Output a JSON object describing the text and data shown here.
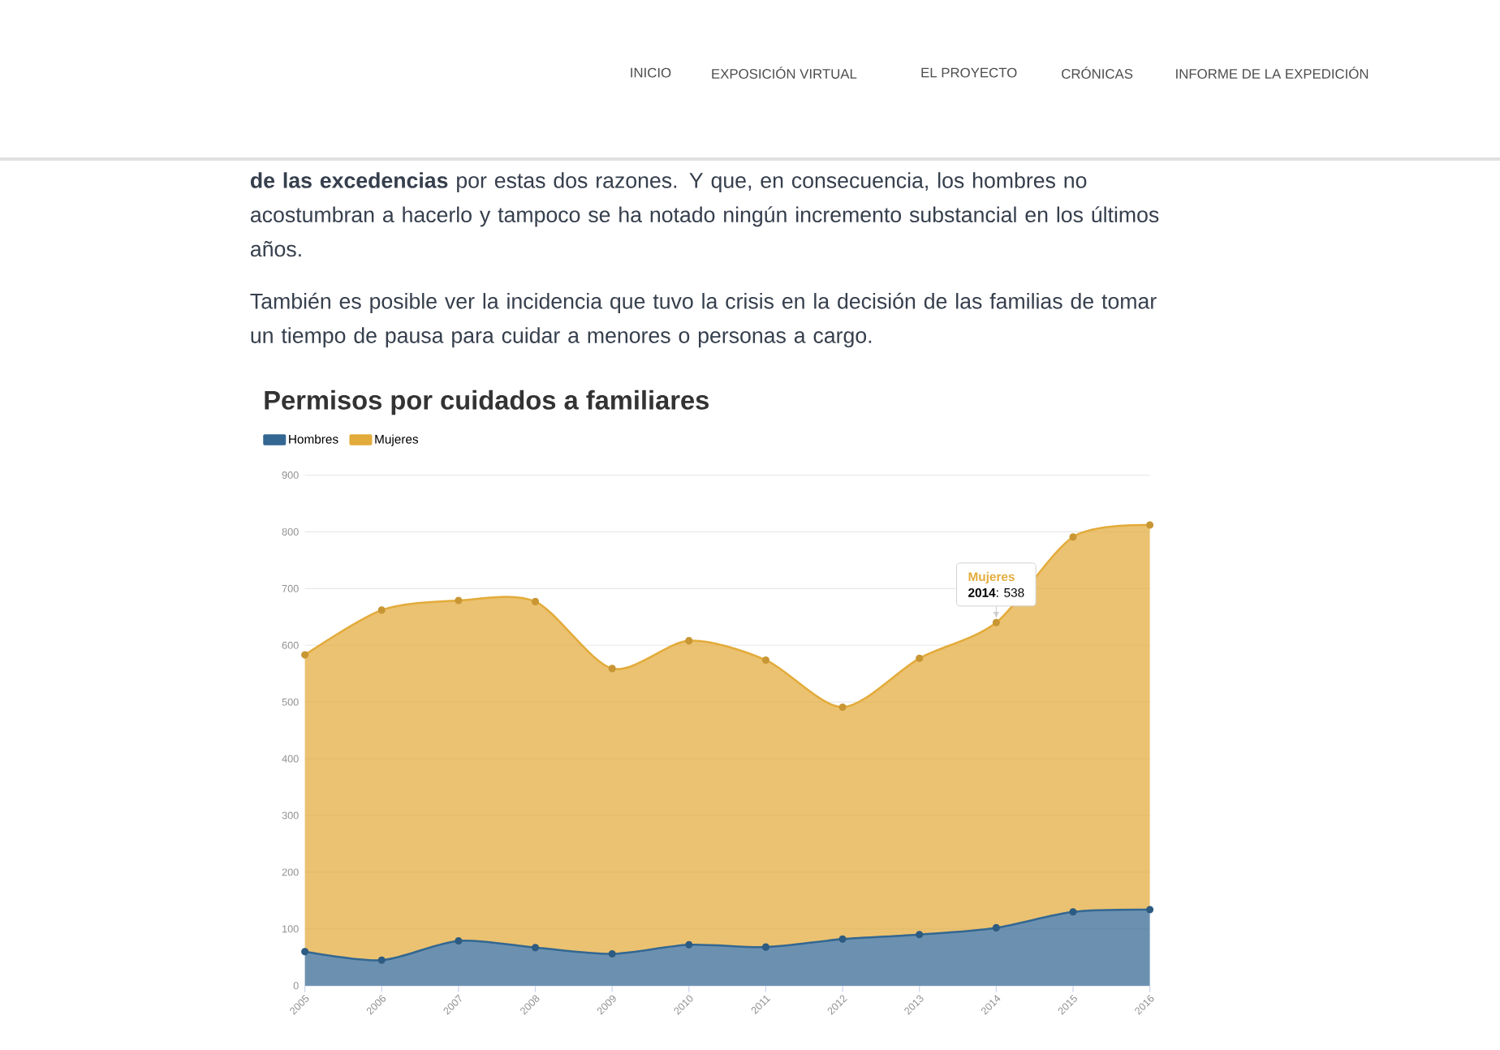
{
  "chart_data": {
    "type": "area",
    "stacked": true,
    "title": "Permisos por cuidados a familiares",
    "categories": [
      "2005",
      "2006",
      "2007",
      "2008",
      "2009",
      "2010",
      "2011",
      "2012",
      "2013",
      "2014",
      "2015",
      "2016"
    ],
    "series": [
      {
        "name": "Hombres",
        "color": "#336792",
        "values": [
          60,
          45,
          79,
          67,
          56,
          72,
          68,
          82,
          90,
          102,
          130,
          134
        ]
      },
      {
        "name": "Mujeres",
        "color": "#e3ab3a",
        "values": [
          523,
          617,
          600,
          610,
          503,
          536,
          506,
          409,
          487,
          538,
          661,
          678
        ]
      }
    ],
    "ylim": [
      0,
      900
    ],
    "yticks": [
      0,
      100,
      200,
      300,
      400,
      500,
      600,
      700,
      800,
      900
    ],
    "grid": "y",
    "legend": "top left",
    "marker": "circle",
    "line_style": "solid",
    "annotations": [
      "INICIO",
      "EXPOSICIÓN VIRTUAL",
      "EL PROYECTO",
      "CRÓNICAS",
      "INFORME DE LA EXPEDICIÓN",
      "**de las excedencias** por estas dos razones. Y que, en consecuencia, los hombres no acostumbran a hacerlo y tampoco se ha notado ningún incremento substancial en los últimos años.",
      "También es posible ver la incidencia que tuvo la crisis en la decisión de las familias de tomar un tiempo de pausa para cuidar a menores o personas a cargo.",
      "Mujeres",
      {
        "text": "**2014**: 538",
        "x": "2014",
        "y": 640
      }
    ]
  }
}
